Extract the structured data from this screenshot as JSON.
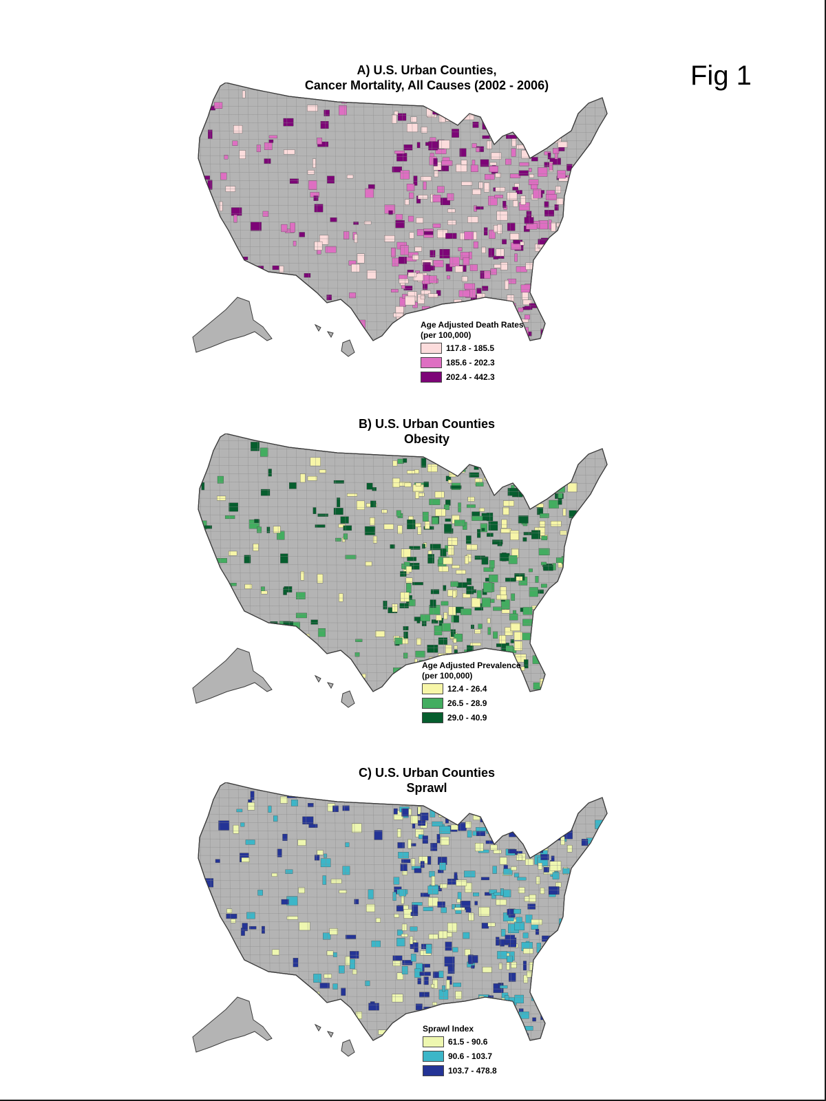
{
  "figure_label": "Fig 1",
  "map_fill": "#b4b4b4",
  "map_stroke": "#3a3a3a",
  "panels": [
    {
      "id": "A",
      "title_line1": "A) U.S. Urban Counties,",
      "title_line2": "Cancer Mortality, All Causes (2002 - 2006)",
      "legend_title_line1": "Age Adjusted Death Rates",
      "legend_title_line2": "(per 100,000)",
      "classes": [
        {
          "label": "117.8 - 185.5",
          "color": "#fcdcdc"
        },
        {
          "label": "185.6 - 202.3",
          "color": "#de6fc2"
        },
        {
          "label": "202.4 - 442.3",
          "color": "#7d0477"
        }
      ]
    },
    {
      "id": "B",
      "title_line1": "B) U.S. Urban Counties",
      "title_line2": "Obesity",
      "legend_title_line1": "Age Adjusted Prevalence",
      "legend_title_line2": "(per 100,000)",
      "classes": [
        {
          "label": "12.4 - 26.4",
          "color": "#f7f6a8"
        },
        {
          "label": "26.5 - 28.9",
          "color": "#43ad60"
        },
        {
          "label": "29.0 - 40.9",
          "color": "#065e2e"
        }
      ]
    },
    {
      "id": "C",
      "title_line1": "C) U.S. Urban Counties",
      "title_line2": "Sprawl",
      "legend_title_line1": "Sprawl Index",
      "legend_title_line2": "",
      "classes": [
        {
          "label": "61.5 - 90.6",
          "color": "#eef7b0"
        },
        {
          "label": "90.6 - 103.7",
          "color": "#3cb6c8"
        },
        {
          "label": "103.7 - 478.8",
          "color": "#243496"
        }
      ]
    }
  ]
}
